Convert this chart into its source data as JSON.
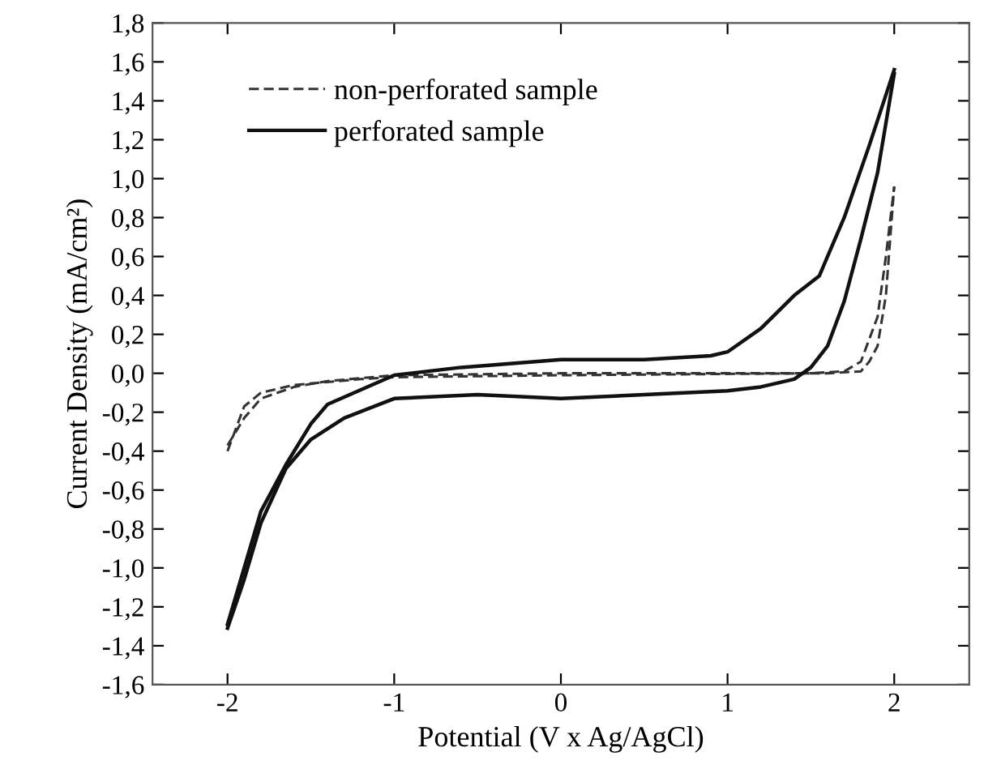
{
  "chart_data": {
    "type": "line",
    "xlabel": "Potential (V x Ag/AgCl)",
    "ylabel": "Current Density (mA/cm²)",
    "xlim": [
      -2.45,
      2.45
    ],
    "ylim": [
      -1.6,
      1.8
    ],
    "xticks": [
      {
        "value": -2,
        "label": "-2"
      },
      {
        "value": -1,
        "label": "-1"
      },
      0,
      1,
      2
    ],
    "yticks": [
      {
        "value": -1.6,
        "label": "-1,6"
      },
      {
        "value": -1.4,
        "label": "-1,4"
      },
      {
        "value": -1.2,
        "label": "-1,2"
      },
      {
        "value": -1.0,
        "label": "-1,0"
      },
      {
        "value": -0.8,
        "label": "-0,8"
      },
      {
        "value": -0.6,
        "label": "-0,6"
      },
      {
        "value": -0.4,
        "label": "-0,4"
      },
      {
        "value": -0.2,
        "label": "-0,2"
      },
      {
        "value": 0.0,
        "label": "0,0"
      },
      {
        "value": 0.2,
        "label": "0,2"
      },
      {
        "value": 0.4,
        "label": "0,4"
      },
      {
        "value": 0.6,
        "label": "0,6"
      },
      {
        "value": 0.8,
        "label": "0,8"
      },
      {
        "value": 1.0,
        "label": "1,0"
      },
      {
        "value": 1.2,
        "label": "1,2"
      },
      {
        "value": 1.4,
        "label": "1,4"
      },
      {
        "value": 1.6,
        "label": "1,6"
      },
      {
        "value": 1.8,
        "label": "1,8"
      }
    ],
    "grid": false,
    "legend": "top left",
    "marker": "none",
    "series": [
      {
        "name": "non-perforated sample",
        "color": "#333333",
        "line_style": "dashed",
        "x": [
          -2.0,
          -1.9,
          -1.8,
          -1.6,
          -1.2,
          -1.0,
          0.0,
          1.5,
          1.7,
          1.8,
          1.9,
          1.95,
          2.0
        ],
        "values": [
          -0.4,
          -0.17,
          -0.1,
          -0.06,
          -0.03,
          -0.02,
          -0.01,
          0.0,
          0.01,
          0.06,
          0.29,
          0.6,
          0.96
        ]
      },
      {
        "color": "#333333",
        "line_style": "dashed",
        "x": [
          -2.0,
          -1.9,
          -1.8,
          -1.6,
          -1.4,
          -1.0,
          0.0,
          1.0,
          1.6,
          1.8,
          1.85,
          1.9,
          1.95,
          1.98,
          2.0
        ],
        "values": [
          -0.37,
          -0.23,
          -0.13,
          -0.07,
          -0.04,
          -0.01,
          0.0,
          0.0,
          0.0,
          0.01,
          0.06,
          0.14,
          0.4,
          0.74,
          0.96
        ]
      },
      {
        "name": "perforated sample",
        "color": "#111111",
        "line_style": "solid",
        "x": [
          -2.0,
          -1.8,
          -1.65,
          -1.5,
          -1.4,
          -1.0,
          -0.6,
          0.0,
          0.5,
          0.9,
          1.0,
          1.2,
          1.4,
          1.55,
          1.7,
          1.85,
          2.0
        ],
        "values": [
          -1.29,
          -0.71,
          -0.47,
          -0.26,
          -0.16,
          -0.01,
          0.03,
          0.07,
          0.07,
          0.09,
          0.11,
          0.23,
          0.4,
          0.5,
          0.8,
          1.17,
          1.56
        ]
      },
      {
        "color": "#111111",
        "line_style": "solid",
        "x": [
          -2.0,
          -1.9,
          -1.8,
          -1.65,
          -1.5,
          -1.3,
          -1.0,
          -0.5,
          0.0,
          0.5,
          1.0,
          1.2,
          1.4,
          1.5,
          1.6,
          1.7,
          1.8,
          1.9,
          2.0
        ],
        "values": [
          -1.31,
          -1.06,
          -0.77,
          -0.49,
          -0.34,
          -0.23,
          -0.13,
          -0.11,
          -0.13,
          -0.11,
          -0.09,
          -0.07,
          -0.03,
          0.03,
          0.14,
          0.37,
          0.69,
          1.03,
          1.54
        ]
      }
    ]
  }
}
